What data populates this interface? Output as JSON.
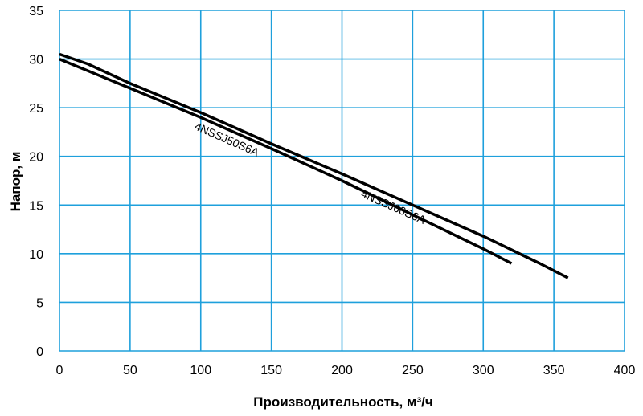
{
  "chart_data": {
    "type": "line",
    "xlabel": "Производительность, м³/ч",
    "ylabel": "Напор, м",
    "xlim": [
      0,
      400
    ],
    "ylim": [
      0,
      35
    ],
    "xticks": [
      0,
      50,
      100,
      150,
      200,
      250,
      300,
      350,
      400
    ],
    "yticks": [
      0,
      5,
      10,
      15,
      20,
      25,
      30,
      35
    ],
    "grid": true,
    "grid_color": "#1ea0dc",
    "line_color": "#000000",
    "series": [
      {
        "name": "4NSSJ50S6A",
        "x": [
          0,
          50,
          100,
          150,
          200,
          250,
          300,
          320
        ],
        "y": [
          30.0,
          27.0,
          24.0,
          20.8,
          17.5,
          14.0,
          10.5,
          9.0
        ]
      },
      {
        "name": "4NSSJ60S6A",
        "x": [
          0,
          20,
          50,
          100,
          150,
          200,
          250,
          300,
          340,
          360
        ],
        "y": [
          30.5,
          29.5,
          27.5,
          24.5,
          21.3,
          18.2,
          15.0,
          11.8,
          9.0,
          7.5
        ]
      }
    ]
  }
}
